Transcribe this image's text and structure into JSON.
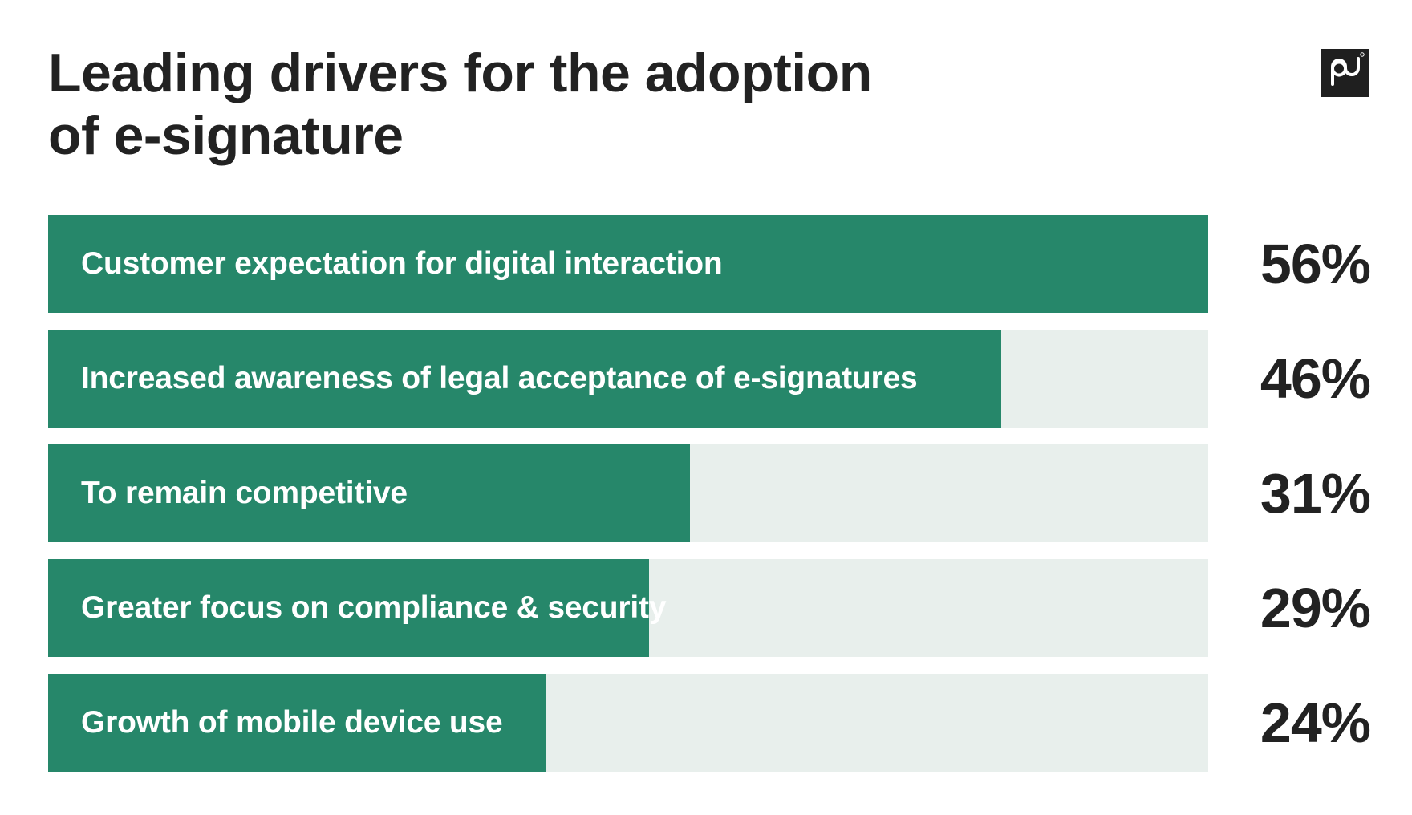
{
  "header": {
    "title_line1": "Leading drivers for the adoption",
    "title_line2": "of e-signature",
    "logo_icon": "pd-logo-icon",
    "logo_text": "pd"
  },
  "colors": {
    "bar_fill": "#26876a",
    "bar_track": "#e8efec",
    "text_dark": "#222222",
    "label_text": "#ffffff"
  },
  "chart_data": {
    "type": "bar",
    "orientation": "horizontal",
    "title": "Leading drivers for the adoption of e-signature",
    "xlabel": "",
    "ylabel": "",
    "unit": "%",
    "xlim": [
      0,
      56
    ],
    "grid": false,
    "categories": [
      "Customer expectation for digital interaction",
      "Increased awareness of legal acceptance of e-signatures",
      "To remain competitive",
      "Greater focus on compliance & security",
      "Growth of mobile device use"
    ],
    "values": [
      56,
      46,
      31,
      29,
      24
    ],
    "value_labels": [
      "56%",
      "46%",
      "31%",
      "29%",
      "24%"
    ]
  }
}
